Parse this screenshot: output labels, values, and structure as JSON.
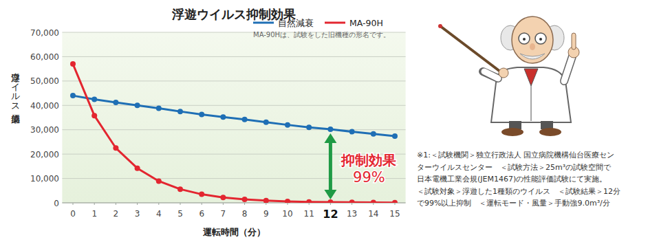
{
  "chart_data": {
    "type": "line",
    "title": "浮遊ウイルス抑制効果",
    "note": "MA-90Hは、試験をした旧機種の形名です。",
    "x_label": "運転時間（分）",
    "y_label": "浮遊ウイルス感染価",
    "x": [
      0,
      1,
      2,
      3,
      4,
      5,
      6,
      7,
      8,
      9,
      10,
      11,
      12,
      13,
      14,
      15
    ],
    "xlim": [
      -0.5,
      15.5
    ],
    "xticks": [
      0,
      1,
      2,
      3,
      4,
      5,
      6,
      7,
      8,
      9,
      10,
      11,
      12,
      13,
      14,
      15
    ],
    "ylim": [
      0,
      70000
    ],
    "yticks": [
      0,
      {
        "value": 10000,
        "label": "10,000"
      },
      {
        "value": 20000,
        "label": "20,000"
      },
      {
        "value": 30000,
        "label": "30,000"
      },
      {
        "value": 40000,
        "label": "40,000"
      },
      {
        "value": 50000,
        "label": "50,000"
      },
      {
        "value": 60000,
        "label": "60,000"
      },
      {
        "value": 70000,
        "label": "70,000"
      }
    ],
    "grid": true,
    "legend": "top-right",
    "marker": "circle",
    "series": [
      {
        "name": "自然減衰",
        "color": "#1f6fb5",
        "values": [
          44000,
          42500,
          41200,
          40000,
          38800,
          37500,
          36300,
          35200,
          34200,
          33100,
          32000,
          31000,
          30200,
          29200,
          28300,
          27400
        ]
      },
      {
        "name": "MA-90H",
        "color": "#e32630",
        "values": [
          57000,
          35800,
          22500,
          14200,
          8900,
          5600,
          3500,
          2200,
          1400,
          900,
          550,
          350,
          300,
          200,
          150,
          100
        ]
      }
    ],
    "annotation": {
      "x": 12,
      "text": [
        "抑制効果",
        "99%"
      ],
      "color": "#1f9a45"
    },
    "footnote": [
      "※1:＜試験機関＞独立行政法人 国立病院機構仙台医療セン",
      "ターウイルスセンター　＜試験方法＞25m³の試験空間で",
      "日本電機工業会規(JEM1467)の性能評価試験にて実施。",
      "＜試験対象＞浮遊した1種類のウイルス　＜試験結果＞12分",
      "で99%以上抑制　＜運転モード・風量＞手動強9.0m³/分"
    ]
  }
}
